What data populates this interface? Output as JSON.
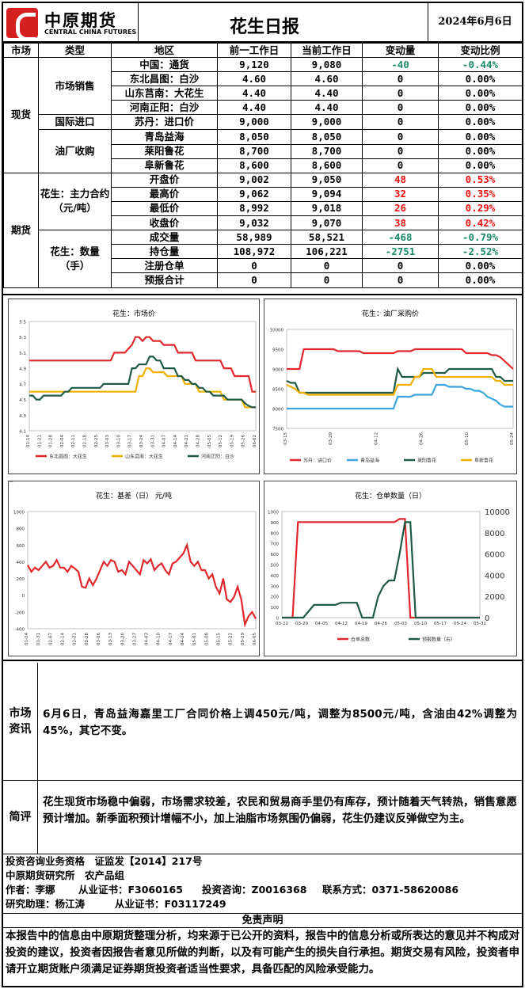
{
  "header": {
    "logo_cn": "中原期货",
    "logo_en": "CENTRAL CHINA FUTURES",
    "title": "花生日报",
    "date": "2024年6月6日"
  },
  "table": {
    "headers": [
      "市场",
      "类型",
      "地区",
      "前一工作日",
      "当前工作日",
      "变动量",
      "变动比例"
    ],
    "spot_label": "现货",
    "futures_label": "期货",
    "groups": {
      "market_sales": "市场销售",
      "intl_import": "国际进口",
      "oil_mill": "油厂收购",
      "main_contract": "花生：主力合约（元/吨）",
      "quantity": "花生：数量（手）"
    },
    "rows": [
      {
        "region": "中国：通货",
        "prev": "9,120",
        "curr": "9,080",
        "chg": "-40",
        "pct": "-0.44%",
        "color": "grn"
      },
      {
        "region": "东北昌图：白沙",
        "prev": "4.60",
        "curr": "4.60",
        "chg": "0",
        "pct": "0.00%",
        "color": ""
      },
      {
        "region": "山东莒南：大花生",
        "prev": "4.40",
        "curr": "4.40",
        "chg": "0",
        "pct": "0.00%",
        "color": ""
      },
      {
        "region": "河南正阳：白沙",
        "prev": "4.40",
        "curr": "4.40",
        "chg": "0",
        "pct": "0.00%",
        "color": ""
      },
      {
        "region": "苏丹：进口价",
        "prev": "9,000",
        "curr": "9,000",
        "chg": "0",
        "pct": "0.00%",
        "color": ""
      },
      {
        "region": "青岛益海",
        "prev": "8,050",
        "curr": "8,050",
        "chg": "0",
        "pct": "0.00%",
        "color": ""
      },
      {
        "region": "莱阳鲁花",
        "prev": "8,700",
        "curr": "8,700",
        "chg": "0",
        "pct": "0.00%",
        "color": ""
      },
      {
        "region": "阜新鲁花",
        "prev": "8,600",
        "curr": "8,600",
        "chg": "0",
        "pct": "0.00%",
        "color": ""
      },
      {
        "region": "开盘价",
        "prev": "9,002",
        "curr": "9,050",
        "chg": "48",
        "pct": "0.53%",
        "color": "red"
      },
      {
        "region": "最高价",
        "prev": "9,062",
        "curr": "9,094",
        "chg": "32",
        "pct": "0.35%",
        "color": "red"
      },
      {
        "region": "最低价",
        "prev": "8,992",
        "curr": "9,018",
        "chg": "26",
        "pct": "0.29%",
        "color": "red"
      },
      {
        "region": "收盘价",
        "prev": "9,032",
        "curr": "9,070",
        "chg": "38",
        "pct": "0.42%",
        "color": "red"
      },
      {
        "region": "成交量",
        "prev": "58,989",
        "curr": "58,521",
        "chg": "-468",
        "pct": "-0.79%",
        "color": "grn"
      },
      {
        "region": "持仓量",
        "prev": "108,972",
        "curr": "106,221",
        "chg": "-2751",
        "pct": "-2.52%",
        "color": "grn"
      },
      {
        "region": "注册仓单",
        "prev": "0",
        "curr": "0",
        "chg": "0",
        "pct": "0.00%",
        "color": ""
      },
      {
        "region": "预报合计",
        "prev": "0",
        "curr": "0",
        "chg": "0",
        "pct": "0.00%",
        "color": ""
      }
    ]
  },
  "chart_data": [
    {
      "type": "line",
      "title": "花生：市场价",
      "ylim": [
        4.1,
        5.5
      ],
      "yticks": [
        "5.5",
        "5.3",
        "5.1",
        "4.9",
        "4.7",
        "4.5",
        "4.3",
        "4.1"
      ],
      "xticks": [
        "01-14",
        "01-21",
        "01-28",
        "02-04",
        "02-11",
        "02-18",
        "02-25",
        "03-03",
        "03-10",
        "03-17",
        "03-24",
        "03-31",
        "04-07",
        "04-14",
        "04-21",
        "04-28",
        "05-05",
        "05-12",
        "05-19",
        "05-26",
        "06-02"
      ],
      "series": [
        {
          "name": "东北昌图：大花生",
          "color": "#e0282c",
          "values": [
            5.0,
            5.0,
            5.0,
            5.0,
            5.0,
            5.0,
            5.0,
            5.0,
            5.0,
            5.0,
            5.0,
            5.0,
            5.0,
            5.0,
            5.0,
            5.0,
            5.0,
            5.0,
            5.0,
            5.0,
            5.0,
            5.0,
            5.0,
            5.0,
            5.1,
            5.1,
            5.1,
            5.1,
            5.15,
            5.2,
            5.3,
            5.3,
            5.25,
            5.3,
            5.3,
            5.25,
            5.25,
            5.25,
            5.2,
            5.2,
            5.2,
            5.2,
            5.1,
            5.1,
            5.1,
            5.1,
            5.1,
            5.0,
            5.0,
            5.0,
            5.0,
            5.0,
            5.0,
            5.0,
            5.0,
            4.9,
            4.9,
            4.9,
            4.8,
            4.8,
            4.8,
            4.8,
            4.8,
            4.6,
            4.6
          ]
        },
        {
          "name": "山东莒南：大花生",
          "color": "#f0b000",
          "values": [
            4.6,
            4.6,
            4.6,
            4.6,
            4.6,
            4.6,
            4.6,
            4.6,
            4.6,
            4.6,
            4.6,
            4.6,
            4.6,
            4.6,
            4.6,
            4.6,
            4.6,
            4.6,
            4.6,
            4.6,
            4.6,
            4.6,
            4.6,
            4.6,
            4.6,
            4.6,
            4.6,
            4.6,
            4.6,
            4.6,
            4.6,
            4.8,
            4.8,
            4.9,
            4.9,
            4.85,
            4.85,
            4.85,
            4.85,
            4.8,
            4.8,
            4.8,
            4.8,
            4.8,
            4.7,
            4.7,
            4.7,
            4.7,
            4.6,
            4.6,
            4.6,
            4.6,
            4.6,
            4.6,
            4.6,
            4.5,
            4.5,
            4.5,
            4.5,
            4.5,
            4.5,
            4.4,
            4.4,
            4.4,
            4.4
          ]
        },
        {
          "name": "河南正阳：白沙",
          "color": "#1e5a46",
          "values": [
            4.55,
            4.55,
            4.5,
            4.5,
            4.55,
            4.55,
            4.55,
            4.55,
            4.55,
            4.55,
            4.6,
            4.6,
            4.65,
            4.65,
            4.65,
            4.65,
            4.65,
            4.65,
            4.65,
            4.65,
            4.65,
            4.7,
            4.7,
            4.7,
            4.7,
            4.7,
            4.7,
            4.7,
            4.7,
            4.9,
            4.9,
            4.95,
            4.95,
            4.95,
            5.05,
            5.05,
            5.0,
            5.0,
            4.9,
            4.9,
            4.9,
            4.9,
            4.8,
            4.8,
            4.75,
            4.75,
            4.7,
            4.7,
            4.65,
            4.65,
            4.6,
            4.6,
            4.55,
            4.55,
            4.55,
            4.55,
            4.5,
            4.5,
            4.5,
            4.5,
            4.5,
            4.45,
            4.42,
            4.4,
            4.4
          ]
        }
      ]
    },
    {
      "type": "line",
      "title": "花生：油厂采购价",
      "ylim": [
        7500,
        10000
      ],
      "yticks": [
        "10000",
        "9500",
        "9000",
        "8500",
        "8000",
        "7500"
      ],
      "xticks": [
        "03-15",
        "03-29",
        "04-12",
        "04-26",
        "05-10",
        "05-24"
      ],
      "series": [
        {
          "name": "苏丹：进口价",
          "color": "#e0282c",
          "values": [
            9000,
            9000,
            9000,
            9000,
            9500,
            9500,
            9500,
            9500,
            9500,
            9500,
            9500,
            9500,
            9450,
            9450,
            9450,
            9450,
            9450,
            9450,
            9400,
            9400,
            9400,
            9400,
            9400,
            9400,
            9400,
            9400,
            9450,
            9450,
            9450,
            9450,
            9500,
            9500,
            9500,
            9500,
            9500,
            9500,
            9500,
            9500,
            9500,
            9500,
            9500,
            9500,
            9400,
            9400,
            9400,
            9400,
            9400,
            9400,
            9350,
            9350,
            9300,
            9200,
            9100,
            9000
          ]
        },
        {
          "name": "青岛益海",
          "color": "#3ba4dc",
          "values": [
            8000,
            8000,
            8000,
            8000,
            8000,
            8000,
            8000,
            8000,
            8000,
            8000,
            8000,
            8000,
            8000,
            8000,
            8000,
            8000,
            8000,
            8000,
            8000,
            8000,
            8000,
            8000,
            8000,
            8000,
            8000,
            8000,
            8300,
            8300,
            8300,
            8300,
            8350,
            8350,
            8350,
            8350,
            8350,
            8600,
            8600,
            8600,
            8550,
            8550,
            8550,
            8550,
            8500,
            8500,
            8450,
            8450,
            8400,
            8300,
            8250,
            8200,
            8100,
            8050,
            8050,
            8050
          ]
        },
        {
          "name": "莱阳鲁花",
          "color": "#1e5a46",
          "values": [
            8700,
            8650,
            8650,
            8400,
            8400,
            8400,
            8400,
            8400,
            8400,
            8400,
            8400,
            8400,
            8400,
            8400,
            8400,
            8400,
            8400,
            8400,
            8400,
            8400,
            8400,
            8400,
            8400,
            8400,
            8400,
            8400,
            9000,
            8800,
            8800,
            8800,
            8800,
            8800,
            8900,
            8900,
            8900,
            8900,
            8900,
            8900,
            9000,
            9000,
            9000,
            9000,
            9000,
            9000,
            9000,
            9000,
            9000,
            9000,
            9000,
            8800,
            8800,
            8700,
            8700,
            8700
          ]
        },
        {
          "name": "阜新鲁花",
          "color": "#f0b000",
          "values": [
            8600,
            8550,
            8500,
            8400,
            8400,
            8350,
            8350,
            8350,
            8350,
            8350,
            8350,
            8350,
            8350,
            8350,
            8350,
            8350,
            8350,
            8350,
            8350,
            8350,
            8350,
            8350,
            8350,
            8350,
            8350,
            8350,
            8600,
            8600,
            8600,
            8600,
            8800,
            8800,
            9000,
            9000,
            9000,
            8800,
            8800,
            8800,
            8800,
            8800,
            8800,
            8800,
            8800,
            8800,
            8800,
            8800,
            8800,
            8800,
            8800,
            8700,
            8700,
            8600,
            8600,
            8600
          ]
        }
      ]
    },
    {
      "type": "line",
      "title": "花生：基差（日） 元/吨",
      "ylim": [
        -400,
        1000
      ],
      "yticks": [
        "1000",
        "800",
        "600",
        "400",
        "200",
        "0",
        "-200",
        "-400"
      ],
      "xticks": [
        "01-24",
        "01-31",
        "02-07",
        "02-14",
        "02-21",
        "02-28",
        "03-06",
        "03-13",
        "03-20",
        "03-27",
        "04-03",
        "04-10",
        "04-17",
        "04-24",
        "05-01",
        "05-08",
        "05-15",
        "05-22",
        "05-29",
        "06-05"
      ],
      "series": [
        {
          "name": "基差",
          "color": "#e0282c",
          "values": [
            360,
            280,
            330,
            300,
            350,
            400,
            330,
            350,
            420,
            330,
            330,
            280,
            350,
            320,
            280,
            100,
            90,
            200,
            120,
            200,
            300,
            400,
            350,
            420,
            400,
            280,
            300,
            250,
            400,
            350,
            300,
            250,
            420,
            380,
            430,
            300,
            350,
            380,
            300,
            250,
            380,
            400,
            450,
            500,
            600,
            400,
            350,
            400,
            300,
            300,
            200,
            250,
            100,
            20,
            200,
            -50,
            -80,
            -20,
            100,
            -50,
            -350,
            -250,
            -200,
            -280
          ]
        }
      ]
    },
    {
      "type": "line",
      "title": "花生：仓单数量（日）",
      "ylim": [
        0,
        1000
      ],
      "y2lim": [
        0,
        10000
      ],
      "yticks": [
        "1000",
        "900",
        "800",
        "700",
        "600",
        "500",
        "400",
        "300",
        "200",
        "100",
        "0"
      ],
      "y2ticks": [
        "10000",
        "8000",
        "6000",
        "4000",
        "2000",
        "0"
      ],
      "xticks": [
        "03-22",
        "03-29",
        "04-05",
        "04-12",
        "04-19",
        "04-26",
        "05-03",
        "05-10",
        "05-17",
        "05-24",
        "05-31"
      ],
      "series": [
        {
          "name": "仓单总数",
          "axis": "left",
          "color": "#e0282c",
          "values": [
            0,
            0,
            0,
            900,
            900,
            900,
            900,
            900,
            900,
            900,
            900,
            900,
            900,
            900,
            900,
            900,
            900,
            900,
            900,
            900,
            900,
            900,
            930,
            930,
            0,
            0,
            0,
            0,
            0,
            0,
            0,
            0,
            0,
            0,
            0,
            0,
            0,
            0
          ]
        },
        {
          "name": "预报数量（右）",
          "axis": "right",
          "color": "#1e5a46",
          "values": [
            0,
            0,
            0,
            0,
            0,
            600,
            1200,
            1200,
            1200,
            1200,
            1200,
            1400,
            1400,
            1400,
            1400,
            0,
            0,
            0,
            2000,
            3000,
            3500,
            3500,
            6000,
            9000,
            9000,
            0,
            0,
            0,
            0,
            0,
            0,
            0,
            0,
            0,
            0,
            0,
            0,
            0
          ]
        }
      ]
    }
  ],
  "market_info": {
    "label": "市场资讯",
    "text": "6月6日，青岛益海嘉里工厂合同价格上调450元/吨，调整为8500元/吨，含油由42%调整为45%，其它不变。"
  },
  "comment": {
    "label": "简评",
    "text": "花生现货市场稳中偏弱，市场需求较差，农民和贸易商手里仍有库存，预计随着天气转热，销售意愿预计增加。新季面积预计增幅不小，加上油脂市场氛围仍偏弱，花生仍建议反弹做空为主。"
  },
  "footer": {
    "line1": "投资咨询业务资格　证监发【2014】217号",
    "line2": "中原期货研究所　农产品组",
    "author_label": "作者：李娜",
    "cert_label": "从业证书：F3060165",
    "consult_label": "投资咨询：Z0016368",
    "contact_label": "联系方式：0371-58620086",
    "assistant_label": "研究助理：杨江涛",
    "assistant_cert": "从业证书：F03117249"
  },
  "disclaimer": {
    "title": "免责声明",
    "text": "本报告中的信息由中原期货整理分析，均来源于已公开的资料，报告中的信息分析或所表达的意见并不构成对投资的建议，投资者因报告者意见所做的判断，以及有可能产生的损失自行承担。期货交易有风险，投资者申请开立期货账户须满足证券期货投资者适当性要求，具备匹配的风险承受能力。"
  }
}
